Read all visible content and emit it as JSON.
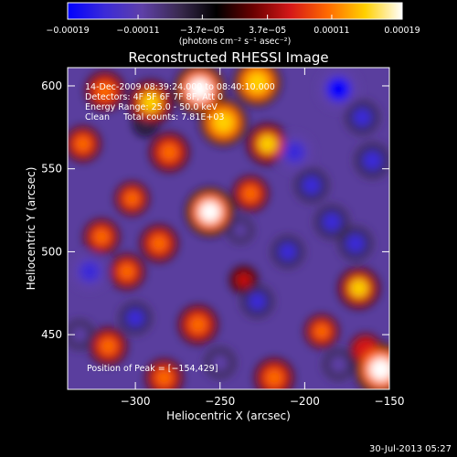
{
  "chart_data": {
    "type": "heatmap",
    "title": "Reconstructed RHESSI Image",
    "xlabel": "Heliocentric X (arcsec)",
    "ylabel": "Heliocentric Y (arcsec)",
    "xlim": [
      -340,
      -150
    ],
    "ylim": [
      417,
      611
    ],
    "x_ticks": [
      -300,
      -250,
      -200,
      -150
    ],
    "x_tick_labels": [
      "−300",
      "−250",
      "−200",
      "−150"
    ],
    "y_ticks": [
      450,
      500,
      550,
      600
    ],
    "y_tick_labels": [
      "450",
      "500",
      "550",
      "600"
    ],
    "colorbar": {
      "min": -0.00019,
      "max": 0.00019,
      "ticks": [
        -0.00019,
        -0.00011,
        -3.7e-05,
        3.7e-05,
        0.00011,
        0.00019
      ],
      "tick_labels": [
        "−0.00019",
        "−0.00011",
        "−3.7e−05",
        "3.7e−05",
        "0.00011",
        "0.00019"
      ],
      "unit_label": "(photons cm⁻² s⁻¹ asec⁻²)",
      "colormap": [
        "#0000ff",
        "#3b2ad8",
        "#5f40a8",
        "#3a2a50",
        "#000000",
        "#6b0000",
        "#d51818",
        "#ff6a00",
        "#ffd000",
        "#ffffff"
      ]
    },
    "annotations": [
      "14-Dec-2009 08:39:24.000 to 08:40:10.000",
      "Detectors: 4F 5F 6F 7F 8F, Att 0",
      "Energy Range: 25.0 - 50.0 keV",
      "Clean     Total counts: 7.81E+03"
    ],
    "peak_label": "Position of Peak = [−154,429]",
    "peak_position": [
      -154,
      429
    ],
    "hot_spots": [
      {
        "x": -318,
        "y": 597,
        "value": 0.00012
      },
      {
        "x": -291,
        "y": 590,
        "value": 0.00015
      },
      {
        "x": -262,
        "y": 598,
        "value": 0.00018
      },
      {
        "x": -248,
        "y": 578,
        "value": 0.00016
      },
      {
        "x": -228,
        "y": 602,
        "value": 0.00016
      },
      {
        "x": -222,
        "y": 565,
        "value": 0.00013
      },
      {
        "x": -280,
        "y": 560,
        "value": 0.00012
      },
      {
        "x": -256,
        "y": 524,
        "value": 0.00017
      },
      {
        "x": -302,
        "y": 532,
        "value": 9e-05
      },
      {
        "x": -232,
        "y": 535,
        "value": 0.0001
      },
      {
        "x": -331,
        "y": 565,
        "value": 0.0001
      },
      {
        "x": -320,
        "y": 509,
        "value": 0.0001
      },
      {
        "x": -286,
        "y": 505,
        "value": 0.00011
      },
      {
        "x": -305,
        "y": 488,
        "value": 0.0001
      },
      {
        "x": -168,
        "y": 478,
        "value": 0.00013
      },
      {
        "x": -263,
        "y": 456,
        "value": 0.00012
      },
      {
        "x": -236,
        "y": 483,
        "value": 6e-05
      },
      {
        "x": -316,
        "y": 443,
        "value": 0.00011
      },
      {
        "x": -218,
        "y": 424,
        "value": 0.00012
      },
      {
        "x": -190,
        "y": 452,
        "value": 9e-05
      },
      {
        "x": -283,
        "y": 424,
        "value": 0.00011
      },
      {
        "x": -164,
        "y": 441,
        "value": 8e-05
      },
      {
        "x": -155,
        "y": 429,
        "value": 0.00019
      }
    ],
    "cold_spots": [
      {
        "x": -180,
        "y": 598,
        "value": -0.00019
      },
      {
        "x": -206,
        "y": 560,
        "value": -0.00016
      },
      {
        "x": -196,
        "y": 540,
        "value": -0.00014
      },
      {
        "x": -160,
        "y": 555,
        "value": -0.00015
      },
      {
        "x": -184,
        "y": 518,
        "value": -0.00014
      },
      {
        "x": -210,
        "y": 500,
        "value": -0.00013
      },
      {
        "x": -170,
        "y": 505,
        "value": -0.00014
      },
      {
        "x": -228,
        "y": 470,
        "value": -0.00013
      },
      {
        "x": -327,
        "y": 488,
        "value": -0.00016
      },
      {
        "x": -300,
        "y": 460,
        "value": -0.00013
      },
      {
        "x": -250,
        "y": 433,
        "value": -0.00012
      },
      {
        "x": -333,
        "y": 450,
        "value": -0.00011
      },
      {
        "x": -180,
        "y": 432,
        "value": -0.00012
      },
      {
        "x": -294,
        "y": 577,
        "value": -7e-05
      },
      {
        "x": -166,
        "y": 581,
        "value": -0.00014
      },
      {
        "x": -238,
        "y": 513,
        "value": -9e-05
      }
    ]
  },
  "footer": {
    "timestamp": "30-Jul-2013 05:27"
  }
}
